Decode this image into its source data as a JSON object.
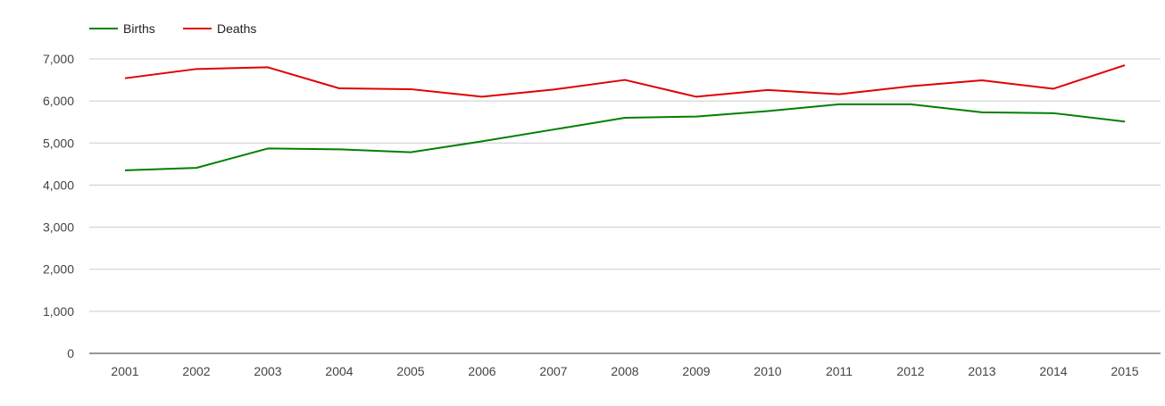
{
  "chart_data": {
    "type": "line",
    "title": "",
    "xlabel": "",
    "ylabel": "",
    "categories": [
      "2001",
      "2002",
      "2003",
      "2004",
      "2005",
      "2006",
      "2007",
      "2008",
      "2009",
      "2010",
      "2011",
      "2012",
      "2013",
      "2014",
      "2015"
    ],
    "series": [
      {
        "name": "Births",
        "color": "#008000",
        "values": [
          4350,
          4410,
          4870,
          4850,
          4780,
          5040,
          5320,
          5600,
          5630,
          5760,
          5920,
          5920,
          5730,
          5710,
          5510
        ]
      },
      {
        "name": "Deaths",
        "color": "#e00000",
        "values": [
          6540,
          6760,
          6800,
          6300,
          6280,
          6100,
          6270,
          6500,
          6100,
          6260,
          6160,
          6350,
          6490,
          6290,
          6850
        ]
      }
    ],
    "ylim": [
      0,
      7000
    ],
    "y_ticks": [
      0,
      1000,
      2000,
      3000,
      4000,
      5000,
      6000,
      7000
    ],
    "y_tick_labels": [
      "0",
      "1,000",
      "2,000",
      "3,000",
      "4,000",
      "5,000",
      "6,000",
      "7,000"
    ],
    "grid": true,
    "legend_position": "top-left",
    "grid_color": "#cccccc",
    "axis_color": "#333333"
  }
}
